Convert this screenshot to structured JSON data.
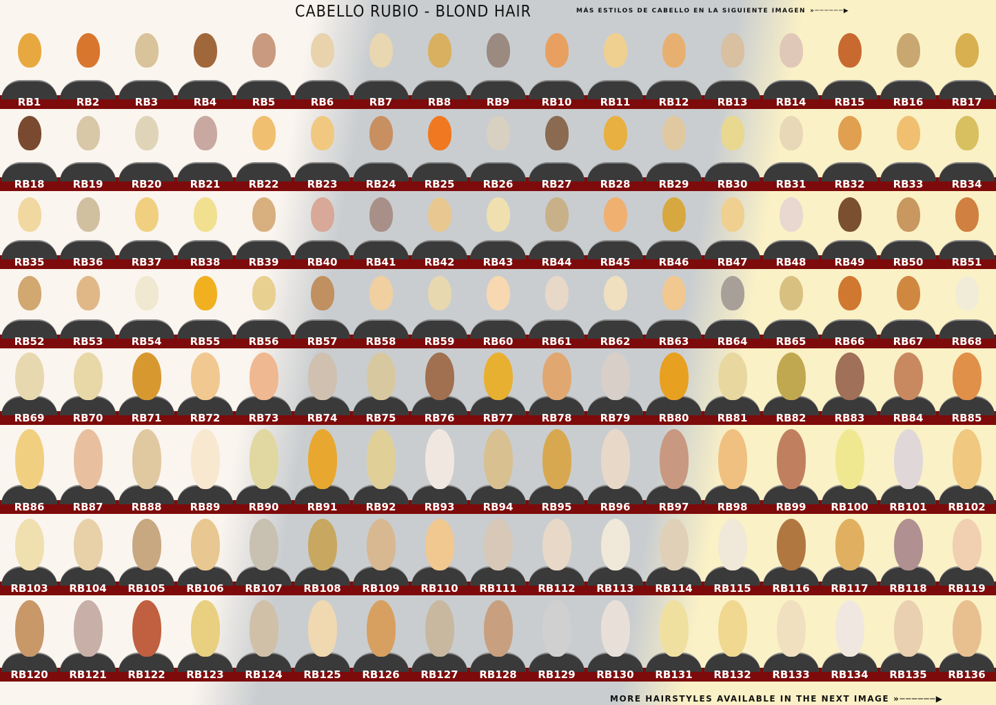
{
  "title": "CABELLO RUBIO - BLOND HAIR",
  "top_note": "MÁS ESTILOS DE CABELLO EN LA SIGUIENTE IMAGEN",
  "bottom_note": "MORE HAIRSTYLES AVAILABLE IN THE NEXT IMAGE",
  "arrow_icon": "arrow-right-icon",
  "label_band_color": "#7d0b0b",
  "rows": [
    {
      "colors": [
        "#e8a840",
        "#d9762e",
        "#d9c39a",
        "#a0673a",
        "#c99a80",
        "#e8d3ac",
        "#e8d7b0",
        "#d8b060",
        "#9a8a80",
        "#e8a060",
        "#f0d090",
        "#e8b070",
        "#d8c0a0",
        "#e0c8b8",
        "#c86a30",
        "#c8a870",
        "#d8b050"
      ]
    },
    {
      "colors": [
        "#7a4a30",
        "#d8c8a8",
        "#e0d4b8",
        "#c8a8a0",
        "#f0c070",
        "#f0c880",
        "#c89060",
        "#f07820",
        "#d8d0c0",
        "#8a6a50",
        "#e8b040",
        "#e0c8a0",
        "#e8d890",
        "#e8d8b8",
        "#e0a050",
        "#f0c070",
        "#d8c060"
      ]
    },
    {
      "colors": [
        "#f0d8a0",
        "#d0c0a0",
        "#f0d080",
        "#f0e090",
        "#d8b080",
        "#d8a898",
        "#a89088",
        "#e8c890",
        "#f0e0b0",
        "#c8b088",
        "#f0b070",
        "#d8a840",
        "#f0d090",
        "#e8d8d0",
        "#7a5030",
        "#c89860",
        "#d08040"
      ]
    },
    {
      "colors": [
        "#d0a870",
        "#e0b888",
        "#f0e8d0",
        "#f0b020",
        "#e8d090",
        "#c09060",
        "#f0d0a0",
        "#e8d8b0",
        "#f8d8b0",
        "#e8d8c8",
        "#f0e0c0",
        "#f0c890",
        "#a8a098",
        "#d8c080",
        "#d07830",
        "#d08840",
        "#f0ecd8"
      ]
    },
    {
      "colors": [
        "#e8d8b0",
        "#e8d8a8",
        "#d89830",
        "#f0c890",
        "#f0b890",
        "#d0c0b0",
        "#d8c8a0",
        "#a07050",
        "#e8b030",
        "#e0a870",
        "#d8d0c8",
        "#e8a020",
        "#e8d8a0",
        "#c0a850",
        "#a07058",
        "#c88860",
        "#e09048"
      ]
    },
    {
      "colors": [
        "#f0d080",
        "#e8c0a0",
        "#e0c8a0",
        "#f8e8d0",
        "#e0d8a0",
        "#e8a830",
        "#e0d098",
        "#f0e8e0",
        "#d8c090",
        "#d8a850",
        "#e8d8c8",
        "#c89880",
        "#f0c080",
        "#c08060",
        "#f0e890",
        "#e0d8d8",
        "#f0c880"
      ]
    },
    {
      "colors": [
        "#f0e0b0",
        "#e8d0a8",
        "#c8a880",
        "#e8c890",
        "#c8c0b0",
        "#c8a860",
        "#d8b890",
        "#f0c890",
        "#d8c8b8",
        "#e8d8c8",
        "#f0e8d8",
        "#e0d0b8",
        "#f0e8d8",
        "#b07840",
        "#e0b060",
        "#b09090",
        "#f0d0b0"
      ]
    },
    {
      "colors": [
        "#c89868",
        "#c8b0a8",
        "#c06040",
        "#e8d080",
        "#d0c0a8",
        "#f0d8b0",
        "#d8a060",
        "#c8b8a0",
        "#c8a080",
        "#d0d0d0",
        "#e8e0d8",
        "#f0e0a0",
        "#f0d890",
        "#f0e0c0",
        "#f0e8e0",
        "#e8d0b0",
        "#e8c090"
      ]
    }
  ]
}
